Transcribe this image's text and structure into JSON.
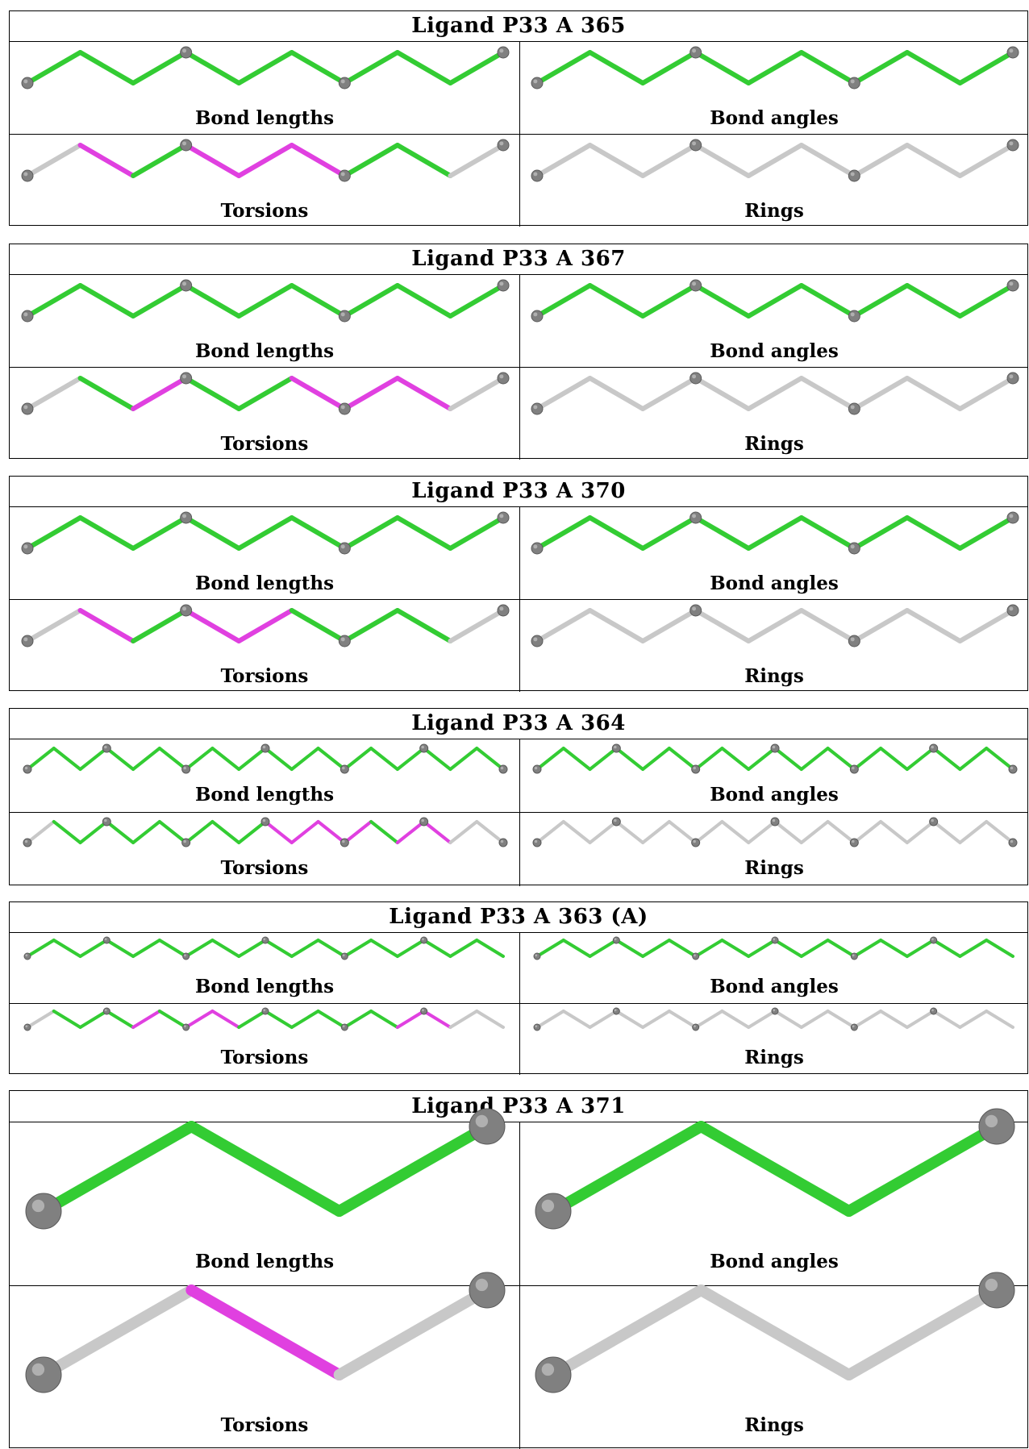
{
  "labels": {
    "bond_lengths": "Bond lengths",
    "bond_angles": "Bond angles",
    "torsions": "Torsions",
    "rings": "Rings"
  },
  "colors": {
    "ok": "#33cc33",
    "outlier": "#e040e0",
    "neutral": "#c8c8c8",
    "atom": "#808080",
    "border": "#000000"
  },
  "ligands": [
    {
      "id": "P33-A-365",
      "title": "Ligand P33 A 365",
      "atoms": 9,
      "atom_spheres": [
        0,
        3,
        6,
        9
      ],
      "torsion_bonds": [
        "neutral",
        "outlier",
        "ok",
        "outlier",
        "outlier",
        "outlier",
        "ok",
        "ok",
        "neutral"
      ]
    },
    {
      "id": "P33-A-367",
      "title": "Ligand P33 A 367",
      "atoms": 9,
      "atom_spheres": [
        0,
        3,
        6,
        9
      ],
      "torsion_bonds": [
        "neutral",
        "ok",
        "outlier",
        "ok",
        "ok",
        "outlier",
        "outlier",
        "outlier",
        "neutral"
      ]
    },
    {
      "id": "P33-A-370",
      "title": "Ligand P33 A 370",
      "atoms": 9,
      "atom_spheres": [
        0,
        3,
        6,
        9
      ],
      "torsion_bonds": [
        "neutral",
        "outlier",
        "ok",
        "outlier",
        "outlier",
        "ok",
        "ok",
        "ok",
        "neutral"
      ]
    },
    {
      "id": "P33-A-364",
      "title": "Ligand P33 A 364",
      "atoms": 18,
      "atom_spheres": [
        0,
        3,
        6,
        9,
        12,
        15,
        18
      ],
      "torsion_bonds": [
        "neutral",
        "ok",
        "ok",
        "ok",
        "ok",
        "ok",
        "ok",
        "ok",
        "ok",
        "outlier",
        "outlier",
        "outlier",
        "outlier",
        "ok",
        "outlier",
        "outlier",
        "neutral",
        "neutral"
      ]
    },
    {
      "id": "P33-A-363-A",
      "title": "Ligand P33 A 363 (A)",
      "atoms": 18,
      "atom_spheres": [
        0,
        3,
        6,
        9,
        12,
        15
      ],
      "torsion_bonds": [
        "neutral",
        "ok",
        "ok",
        "ok",
        "outlier",
        "ok",
        "outlier",
        "outlier",
        "ok",
        "ok",
        "ok",
        "ok",
        "ok",
        "ok",
        "outlier",
        "outlier",
        "neutral",
        "neutral"
      ]
    },
    {
      "id": "P33-A-371",
      "title": "Ligand P33 A 371",
      "atoms": 3,
      "atom_spheres": [
        0,
        3
      ],
      "torsion_bonds": [
        "neutral",
        "outlier",
        "neutral"
      ]
    }
  ]
}
